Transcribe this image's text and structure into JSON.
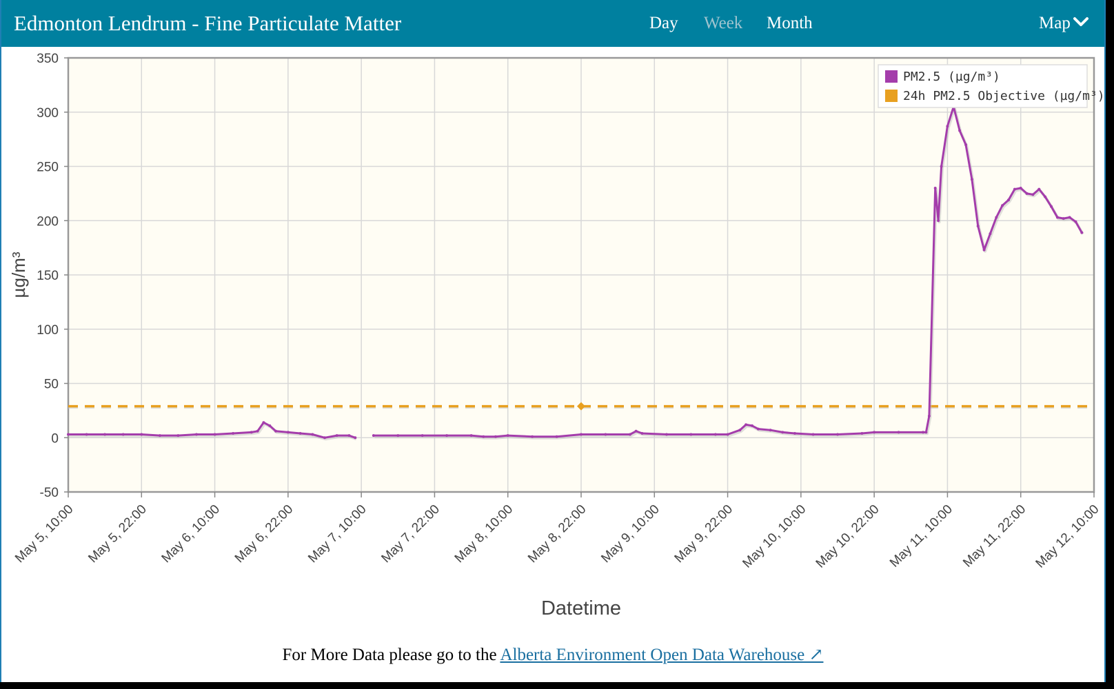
{
  "header": {
    "title": "Edmonton Lendrum - Fine Particulate Matter",
    "tabs": [
      {
        "label": "Day",
        "active": false
      },
      {
        "label": "Week",
        "active": true
      },
      {
        "label": "Month",
        "active": false
      }
    ],
    "map_label": "Map",
    "map_icon": "chevron-down-icon"
  },
  "footer": {
    "text": "For More Data please go to the",
    "link_text": "Alberta Environment Open Data Warehouse ↗"
  },
  "colors": {
    "header_bg": "#00809f",
    "plot_bg": "#fffdf4",
    "pm25": "#a43dab",
    "objective": "#e8a020",
    "link": "#1a6fa0"
  },
  "chart_data": {
    "type": "line",
    "title": "",
    "xlabel": "Datetime",
    "ylabel": "µg/m³",
    "ylim": [
      -50,
      350
    ],
    "yticks": [
      -50,
      0,
      50,
      100,
      150,
      200,
      250,
      300,
      350
    ],
    "xlim": [
      "2023-05-05 10:00",
      "2023-05-12 10:00"
    ],
    "xtick_labels": [
      "May 5, 10:00",
      "May 5, 22:00",
      "May 6, 10:00",
      "May 6, 22:00",
      "May 7, 10:00",
      "May 7, 22:00",
      "May 8, 10:00",
      "May 8, 22:00",
      "May 9, 10:00",
      "May 9, 22:00",
      "May 10, 10:00",
      "May 10, 22:00",
      "May 11, 10:00",
      "May 11, 22:00",
      "May 12, 10:00"
    ],
    "grid": true,
    "legend": "top-right",
    "series": [
      {
        "name": "PM2.5 (µg/m³)",
        "color": "#a43dab",
        "style": "solid",
        "points": [
          [
            "May 5 10:00",
            3
          ],
          [
            "May 5 13:00",
            3
          ],
          [
            "May 5 16:00",
            3
          ],
          [
            "May 5 19:00",
            3
          ],
          [
            "May 5 22:00",
            3
          ],
          [
            "May 6 01:00",
            2
          ],
          [
            "May 6 04:00",
            2
          ],
          [
            "May 6 07:00",
            3
          ],
          [
            "May 6 10:00",
            3
          ],
          [
            "May 6 13:00",
            4
          ],
          [
            "May 6 16:00",
            5
          ],
          [
            "May 6 17:00",
            6
          ],
          [
            "May 6 18:00",
            14
          ],
          [
            "May 6 19:00",
            11
          ],
          [
            "May 6 20:00",
            6
          ],
          [
            "May 6 22:00",
            5
          ],
          [
            "May 7 00:00",
            4
          ],
          [
            "May 7 02:00",
            3
          ],
          [
            "May 7 04:00",
            0
          ],
          [
            "May 7 06:00",
            2
          ],
          [
            "May 7 08:00",
            2
          ],
          [
            "May 7 09:00",
            0
          ],
          [
            "May 7 11:00",
            null
          ],
          [
            "May 7 12:00",
            2
          ],
          [
            "May 7 16:00",
            2
          ],
          [
            "May 7 20:00",
            2
          ],
          [
            "May 8 00:00",
            2
          ],
          [
            "May 8 04:00",
            2
          ],
          [
            "May 8 06:00",
            1
          ],
          [
            "May 8 08:00",
            1
          ],
          [
            "May 8 10:00",
            2
          ],
          [
            "May 8 14:00",
            1
          ],
          [
            "May 8 18:00",
            1
          ],
          [
            "May 8 22:00",
            3
          ],
          [
            "May 9 02:00",
            3
          ],
          [
            "May 9 06:00",
            3
          ],
          [
            "May 9 07:00",
            6
          ],
          [
            "May 9 08:00",
            4
          ],
          [
            "May 9 12:00",
            3
          ],
          [
            "May 9 16:00",
            3
          ],
          [
            "May 9 20:00",
            3
          ],
          [
            "May 9 22:00",
            3
          ],
          [
            "May 10 00:00",
            7
          ],
          [
            "May 10 01:00",
            12
          ],
          [
            "May 10 02:00",
            11
          ],
          [
            "May 10 03:00",
            8
          ],
          [
            "May 10 05:00",
            7
          ],
          [
            "May 10 07:00",
            5
          ],
          [
            "May 10 09:00",
            4
          ],
          [
            "May 10 12:00",
            3
          ],
          [
            "May 10 16:00",
            3
          ],
          [
            "May 10 20:00",
            4
          ],
          [
            "May 10 22:00",
            5
          ],
          [
            "May 11 02:00",
            5
          ],
          [
            "May 11 06:00",
            5
          ],
          [
            "May 11 06:30",
            5
          ],
          [
            "May 11 07:00",
            20
          ],
          [
            "May 11 08:00",
            230
          ],
          [
            "May 11 08:30",
            200
          ],
          [
            "May 11 09:00",
            250
          ],
          [
            "May 11 10:00",
            287
          ],
          [
            "May 11 11:00",
            305
          ],
          [
            "May 11 12:00",
            283
          ],
          [
            "May 11 13:00",
            270
          ],
          [
            "May 11 14:00",
            238
          ],
          [
            "May 11 15:00",
            195
          ],
          [
            "May 11 16:00",
            173
          ],
          [
            "May 11 17:00",
            188
          ],
          [
            "May 11 18:00",
            203
          ],
          [
            "May 11 19:00",
            214
          ],
          [
            "May 11 20:00",
            219
          ],
          [
            "May 11 21:00",
            229
          ],
          [
            "May 11 22:00",
            230
          ],
          [
            "May 11 23:00",
            225
          ],
          [
            "May 12 00:00",
            224
          ],
          [
            "May 12 01:00",
            229
          ],
          [
            "May 12 02:00",
            222
          ],
          [
            "May 12 03:00",
            213
          ],
          [
            "May 12 04:00",
            203
          ],
          [
            "May 12 05:00",
            202
          ],
          [
            "May 12 06:00",
            203
          ],
          [
            "May 12 07:00",
            199
          ],
          [
            "May 12 08:00",
            189
          ]
        ]
      },
      {
        "name": "24h PM2.5 Objective (µg/m³)",
        "color": "#e8a020",
        "style": "dashed",
        "points": [
          [
            "May 5 10:00",
            29
          ],
          [
            "May 12 10:00",
            29
          ]
        ]
      }
    ]
  }
}
